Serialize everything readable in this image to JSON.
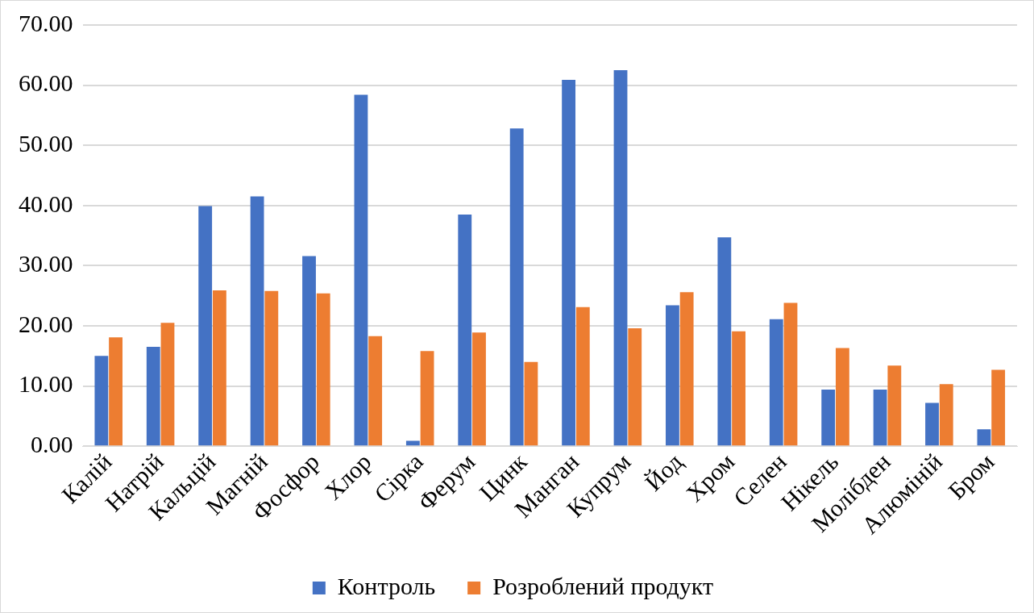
{
  "chart_data": {
    "type": "bar",
    "categories": [
      "Калій",
      "Натрій",
      "Кальцій",
      "Магній",
      "Фосфор",
      "Хлор",
      "Сірка",
      "Ферум",
      "Цинк",
      "Манган",
      "Купрум",
      "Йод",
      "Хром",
      "Селен",
      "Нікель",
      "Молібден",
      "Алюміній",
      "Бром"
    ],
    "series": [
      {
        "name": "Контроль",
        "color": "#4472c4",
        "values": [
          15.0,
          16.5,
          39.9,
          41.5,
          31.6,
          58.4,
          0.9,
          38.5,
          52.8,
          60.9,
          62.5,
          23.4,
          34.7,
          21.1,
          9.4,
          9.4,
          7.2,
          2.8
        ]
      },
      {
        "name": "Розроблений продукт",
        "color": "#ed7d31",
        "values": [
          18.1,
          20.5,
          25.9,
          25.8,
          25.4,
          18.3,
          15.8,
          18.9,
          14.0,
          23.1,
          19.6,
          25.6,
          19.1,
          23.8,
          16.3,
          13.4,
          10.3,
          12.7
        ]
      }
    ],
    "ylim": [
      0,
      70
    ],
    "yticks": [
      {
        "value": 0,
        "label": "0.00"
      },
      {
        "value": 10,
        "label": "10.00"
      },
      {
        "value": 20,
        "label": "20.00"
      },
      {
        "value": 30,
        "label": "30.00"
      },
      {
        "value": 40,
        "label": "40.00"
      },
      {
        "value": 50,
        "label": "50.00"
      },
      {
        "value": 60,
        "label": "60.00"
      },
      {
        "value": 70,
        "label": "70.00"
      }
    ],
    "grid": "y",
    "legend": "bottom"
  }
}
